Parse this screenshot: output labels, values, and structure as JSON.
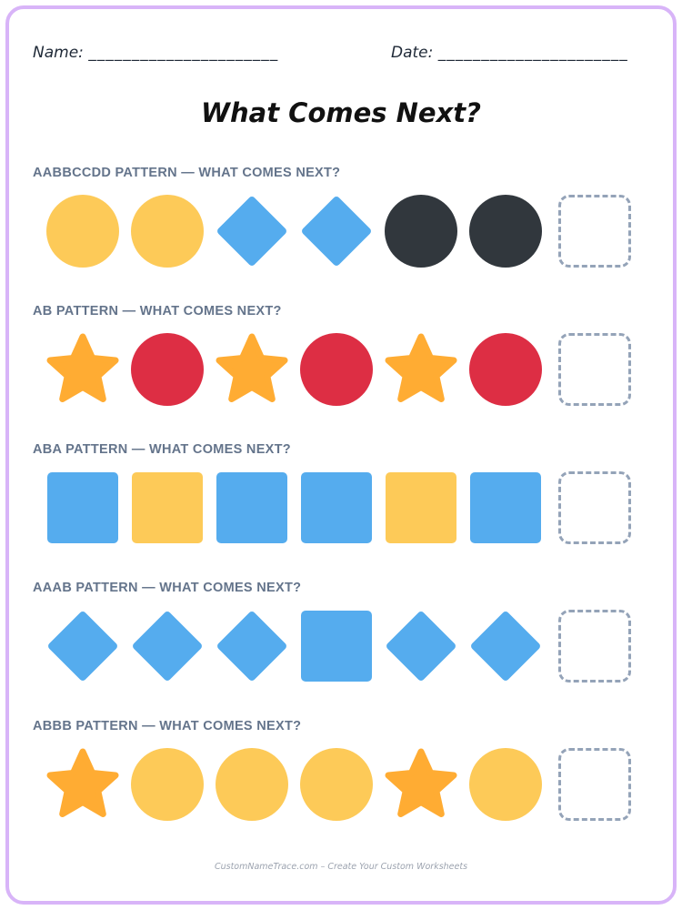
{
  "header": {
    "name_label": "Name:",
    "name_blank": "______________________",
    "date_label": "Date:",
    "date_blank": "______________________",
    "title": "What Comes Next?"
  },
  "colors": {
    "yellow": "#fdca58",
    "blue": "#55acee",
    "dark": "#31373d",
    "red": "#dd2e44",
    "orange": "#ffac33",
    "empty": "#94a3b8",
    "border": "#d8b4f8"
  },
  "patterns": [
    {
      "heading": "AABBCCDD PATTERN — WHAT COMES NEXT?",
      "items": [
        {
          "shape": "circle",
          "color": "yellow"
        },
        {
          "shape": "circle",
          "color": "yellow"
        },
        {
          "shape": "diamond",
          "color": "blue"
        },
        {
          "shape": "diamond",
          "color": "blue"
        },
        {
          "shape": "circle",
          "color": "dark"
        },
        {
          "shape": "circle",
          "color": "dark"
        },
        {
          "shape": "empty",
          "color": "empty"
        }
      ]
    },
    {
      "heading": "AB PATTERN — WHAT COMES NEXT?",
      "items": [
        {
          "shape": "star",
          "color": "orange"
        },
        {
          "shape": "circle",
          "color": "red"
        },
        {
          "shape": "star",
          "color": "orange"
        },
        {
          "shape": "circle",
          "color": "red"
        },
        {
          "shape": "star",
          "color": "orange"
        },
        {
          "shape": "circle",
          "color": "red"
        },
        {
          "shape": "empty",
          "color": "empty"
        }
      ]
    },
    {
      "heading": "ABA PATTERN — WHAT COMES NEXT?",
      "items": [
        {
          "shape": "square",
          "color": "blue"
        },
        {
          "shape": "square",
          "color": "yellow"
        },
        {
          "shape": "square",
          "color": "blue"
        },
        {
          "shape": "square",
          "color": "blue"
        },
        {
          "shape": "square",
          "color": "yellow"
        },
        {
          "shape": "square",
          "color": "blue"
        },
        {
          "shape": "empty",
          "color": "empty"
        }
      ]
    },
    {
      "heading": "AAAB PATTERN — WHAT COMES NEXT?",
      "items": [
        {
          "shape": "diamond",
          "color": "blue"
        },
        {
          "shape": "diamond",
          "color": "blue"
        },
        {
          "shape": "diamond",
          "color": "blue"
        },
        {
          "shape": "square",
          "color": "blue"
        },
        {
          "shape": "diamond",
          "color": "blue"
        },
        {
          "shape": "diamond",
          "color": "blue"
        },
        {
          "shape": "empty",
          "color": "empty"
        }
      ]
    },
    {
      "heading": "ABBB PATTERN — WHAT COMES NEXT?",
      "items": [
        {
          "shape": "star",
          "color": "orange"
        },
        {
          "shape": "circle",
          "color": "yellow"
        },
        {
          "shape": "circle",
          "color": "yellow"
        },
        {
          "shape": "circle",
          "color": "yellow"
        },
        {
          "shape": "star",
          "color": "orange"
        },
        {
          "shape": "circle",
          "color": "yellow"
        },
        {
          "shape": "empty",
          "color": "empty"
        }
      ]
    }
  ],
  "footer": "CustomNameTrace.com – Create Your Custom Worksheets"
}
